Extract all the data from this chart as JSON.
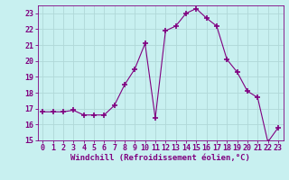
{
  "x": [
    0,
    1,
    2,
    3,
    4,
    5,
    6,
    7,
    8,
    9,
    10,
    11,
    12,
    13,
    14,
    15,
    16,
    17,
    18,
    19,
    20,
    21,
    22,
    23
  ],
  "y": [
    16.8,
    16.8,
    16.8,
    16.9,
    16.6,
    16.6,
    16.6,
    17.2,
    18.5,
    19.5,
    21.1,
    16.4,
    21.9,
    22.2,
    23.0,
    23.3,
    22.7,
    22.2,
    20.1,
    19.3,
    18.1,
    17.7,
    14.9,
    15.8
  ],
  "line_color": "#800080",
  "marker": "+",
  "marker_size": 4,
  "bg_color": "#c8f0f0",
  "grid_color": "#b0d8d8",
  "xlabel": "Windchill (Refroidissement éolien,°C)",
  "xlabel_fontsize": 6.5,
  "tick_fontsize": 6,
  "ylim": [
    15,
    23.5
  ],
  "xlim": [
    -0.5,
    23.5
  ],
  "yticks": [
    15,
    16,
    17,
    18,
    19,
    20,
    21,
    22,
    23
  ],
  "xticks": [
    0,
    1,
    2,
    3,
    4,
    5,
    6,
    7,
    8,
    9,
    10,
    11,
    12,
    13,
    14,
    15,
    16,
    17,
    18,
    19,
    20,
    21,
    22,
    23
  ]
}
